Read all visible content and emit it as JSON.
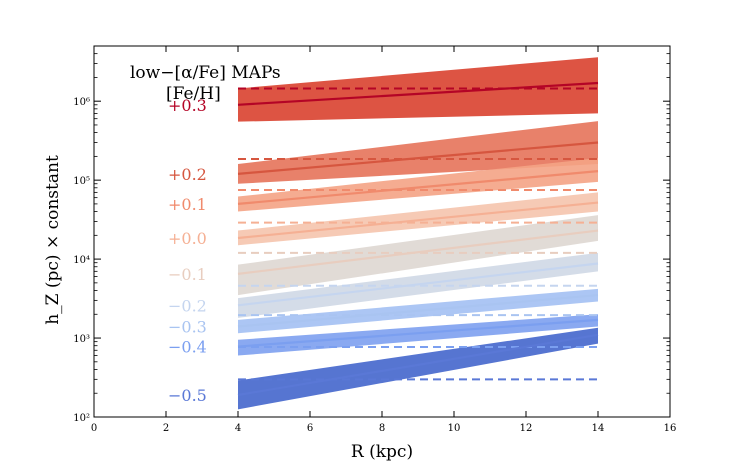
{
  "chart_data": {
    "type": "line",
    "title": "",
    "xlabel": "R (kpc)",
    "ylabel": "h_Z (pc) × constant",
    "xlim": [
      0,
      16
    ],
    "ylim": [
      100,
      5000000
    ],
    "yscale": "log",
    "x_ticks": [
      "0",
      "2",
      "4",
      "6",
      "8",
      "10",
      "12",
      "14",
      "16"
    ],
    "y_ticks": [
      "10²",
      "10³",
      "10⁴",
      "10⁵",
      "10⁶"
    ],
    "annotation_title": "low−[α/Fe] MAPs",
    "annotation_subtitle": "[Fe/H]",
    "series": [
      {
        "name": "+0.3",
        "color": "#b40426",
        "band_color": "#d9412f",
        "x": [
          4,
          14
        ],
        "y": [
          900000,
          1700000
        ],
        "band_low": [
          550000,
          700000
        ],
        "band_high": [
          1450000,
          3600000
        ],
        "dashed": 1450000
      },
      {
        "name": "+0.2",
        "color": "#d6563f",
        "band_color": "#e5735a",
        "x": [
          4,
          14
        ],
        "y": [
          120000,
          300000
        ],
        "band_low": [
          90000,
          160000
        ],
        "band_high": [
          160000,
          560000
        ],
        "dashed": 185000
      },
      {
        "name": "+0.1",
        "color": "#f08a6c",
        "band_color": "#f4a385",
        "x": [
          4,
          14
        ],
        "y": [
          50000,
          130000
        ],
        "band_low": [
          40000,
          95000
        ],
        "band_high": [
          62000,
          190000
        ],
        "dashed": 75000
      },
      {
        "name": "+0.0",
        "color": "#f5b094",
        "band_color": "#f5c4ad",
        "x": [
          4,
          14
        ],
        "y": [
          18500,
          52000
        ],
        "band_low": [
          15000,
          40000
        ],
        "band_high": [
          23000,
          70000
        ],
        "dashed": 29000
      },
      {
        "name": "−0.1",
        "color": "#e8cdbf",
        "band_color": "#ded7d2",
        "x": [
          4,
          14
        ],
        "y": [
          6500,
          23000
        ],
        "band_low": [
          3500,
          17000
        ],
        "band_high": [
          8500,
          36000
        ],
        "dashed": 12000
      },
      {
        "name": "−0.2",
        "color": "#c5d5ef",
        "band_color": "#cfd8e6",
        "x": [
          4,
          14
        ],
        "y": [
          2600,
          8800
        ],
        "band_low": [
          1800,
          7000
        ],
        "band_high": [
          3200,
          12000
        ],
        "dashed": 4600
      },
      {
        "name": "−0.3",
        "color": "#a9c4f1",
        "band_color": "#a3c0f3",
        "x": [
          4,
          14
        ],
        "y": [
          1400,
          3500
        ],
        "band_low": [
          1150,
          2900
        ],
        "band_high": [
          1700,
          4200
        ],
        "dashed": 1950
      },
      {
        "name": "−0.4",
        "color": "#7b9ff0",
        "band_color": "#7da0f0",
        "x": [
          4,
          14
        ],
        "y": [
          780,
          1700
        ],
        "band_low": [
          600,
          1400
        ],
        "band_high": [
          950,
          2000
        ],
        "dashed": 770
      },
      {
        "name": "−0.5",
        "color": "#5a78d6",
        "band_color": "#4466cc",
        "x": [
          4,
          14
        ],
        "y": [
          190,
          1100
        ],
        "band_low": [
          125,
          850
        ],
        "band_high": [
          290,
          1350
        ],
        "dashed": 300
      }
    ]
  }
}
